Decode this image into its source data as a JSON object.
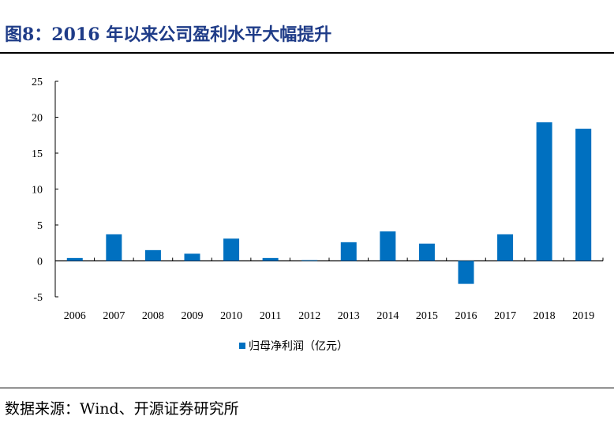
{
  "title": "图8：2016 年以来公司盈利水平大幅提升",
  "source": "数据来源：Wind、开源证券研究所",
  "colors": {
    "bar": "#0070c0",
    "title": "#1f3c88"
  },
  "chart_data": {
    "type": "bar",
    "title": "图8：2016 年以来公司盈利水平大幅提升",
    "categories": [
      "2006",
      "2007",
      "2008",
      "2009",
      "2010",
      "2011",
      "2012",
      "2013",
      "2014",
      "2015",
      "2016",
      "2017",
      "2018",
      "2019"
    ],
    "series": [
      {
        "name": "归母净利润（亿元）",
        "values": [
          0.4,
          3.7,
          1.5,
          1.0,
          3.1,
          0.4,
          0.1,
          2.6,
          4.1,
          2.4,
          -3.2,
          3.7,
          19.3,
          18.4
        ]
      }
    ],
    "yticks": [
      "-5",
      "0",
      "5",
      "10",
      "15",
      "20",
      "25"
    ],
    "ylim": [
      -5,
      25
    ],
    "legend": "bottom",
    "grid": false
  }
}
